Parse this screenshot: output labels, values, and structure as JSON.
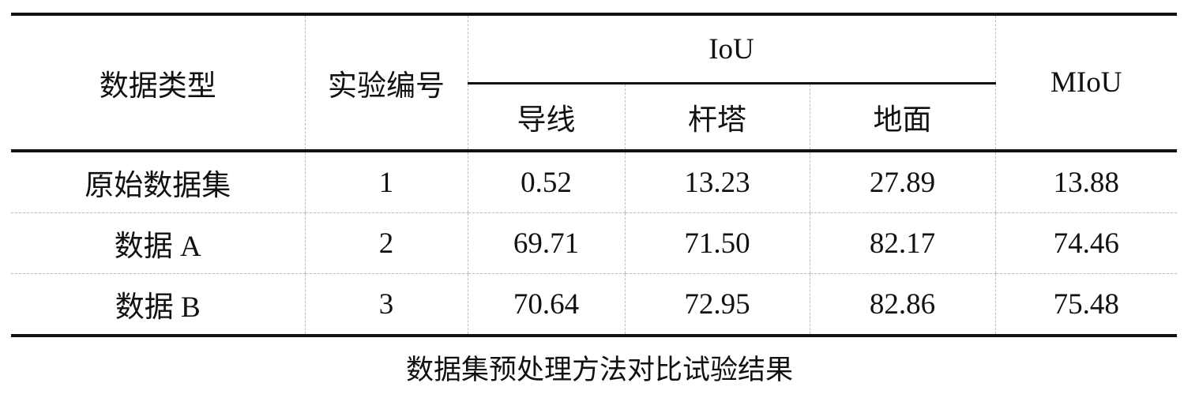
{
  "table": {
    "header": {
      "data_type": "数据类型",
      "exp_no": "实验编号",
      "iou_group": "IoU",
      "iou_sub": [
        "导线",
        "杆塔",
        "地面"
      ],
      "miou": "MIoU"
    },
    "rows": [
      {
        "data_type": "原始数据集",
        "exp_no": "1",
        "wire": "0.52",
        "tower": "13.23",
        "ground": "27.89",
        "miou": "13.88"
      },
      {
        "data_type": "数据 A",
        "exp_no": "2",
        "wire": "69.71",
        "tower": "71.50",
        "ground": "82.17",
        "miou": "74.46"
      },
      {
        "data_type": "数据 B",
        "exp_no": "3",
        "wire": "70.64",
        "tower": "72.95",
        "ground": "82.86",
        "miou": "75.48"
      }
    ]
  },
  "caption": "数据集预处理方法对比试验结果"
}
